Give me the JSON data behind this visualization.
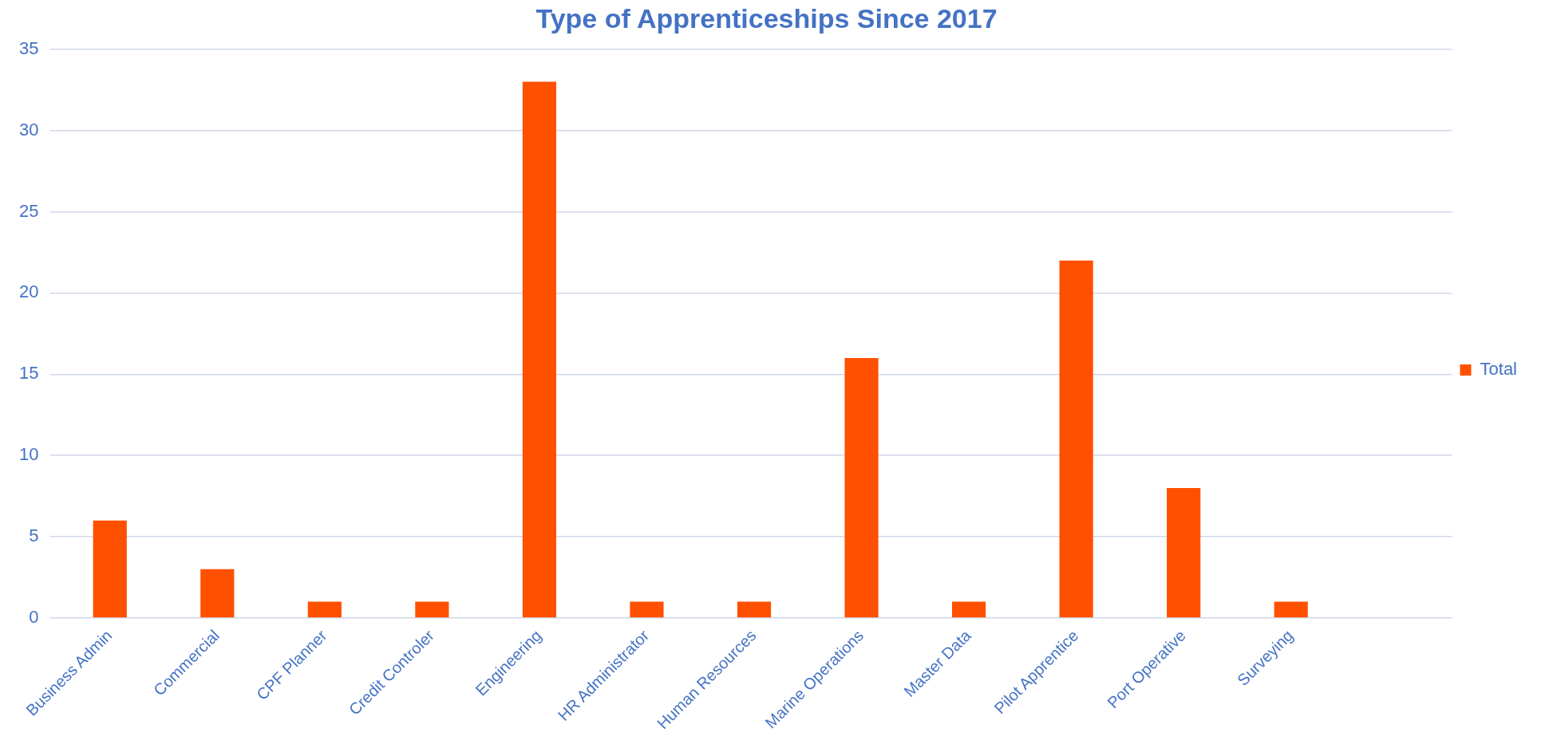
{
  "chart_data": {
    "type": "bar",
    "title": "Type of Apprenticeships Since 2017",
    "categories": [
      "Business Admin",
      "Commercial",
      "CPF Planner",
      "Credit Controler",
      "Engineering",
      "HR Administrator",
      "Human Resources",
      "Marine Operations",
      "Master Data",
      "Pilot Apprentice",
      "Port Operative",
      "Surveying",
      null
    ],
    "series": [
      {
        "name": "Total",
        "color": "#ff5000",
        "values": [
          6,
          3,
          1,
          1,
          33,
          1,
          1,
          16,
          1,
          22,
          8,
          1,
          null
        ]
      }
    ],
    "ylim": [
      0,
      35
    ],
    "yticks": [
      0,
      5,
      10,
      15,
      20,
      25,
      30,
      35
    ],
    "grid": "y",
    "legend": "right"
  }
}
